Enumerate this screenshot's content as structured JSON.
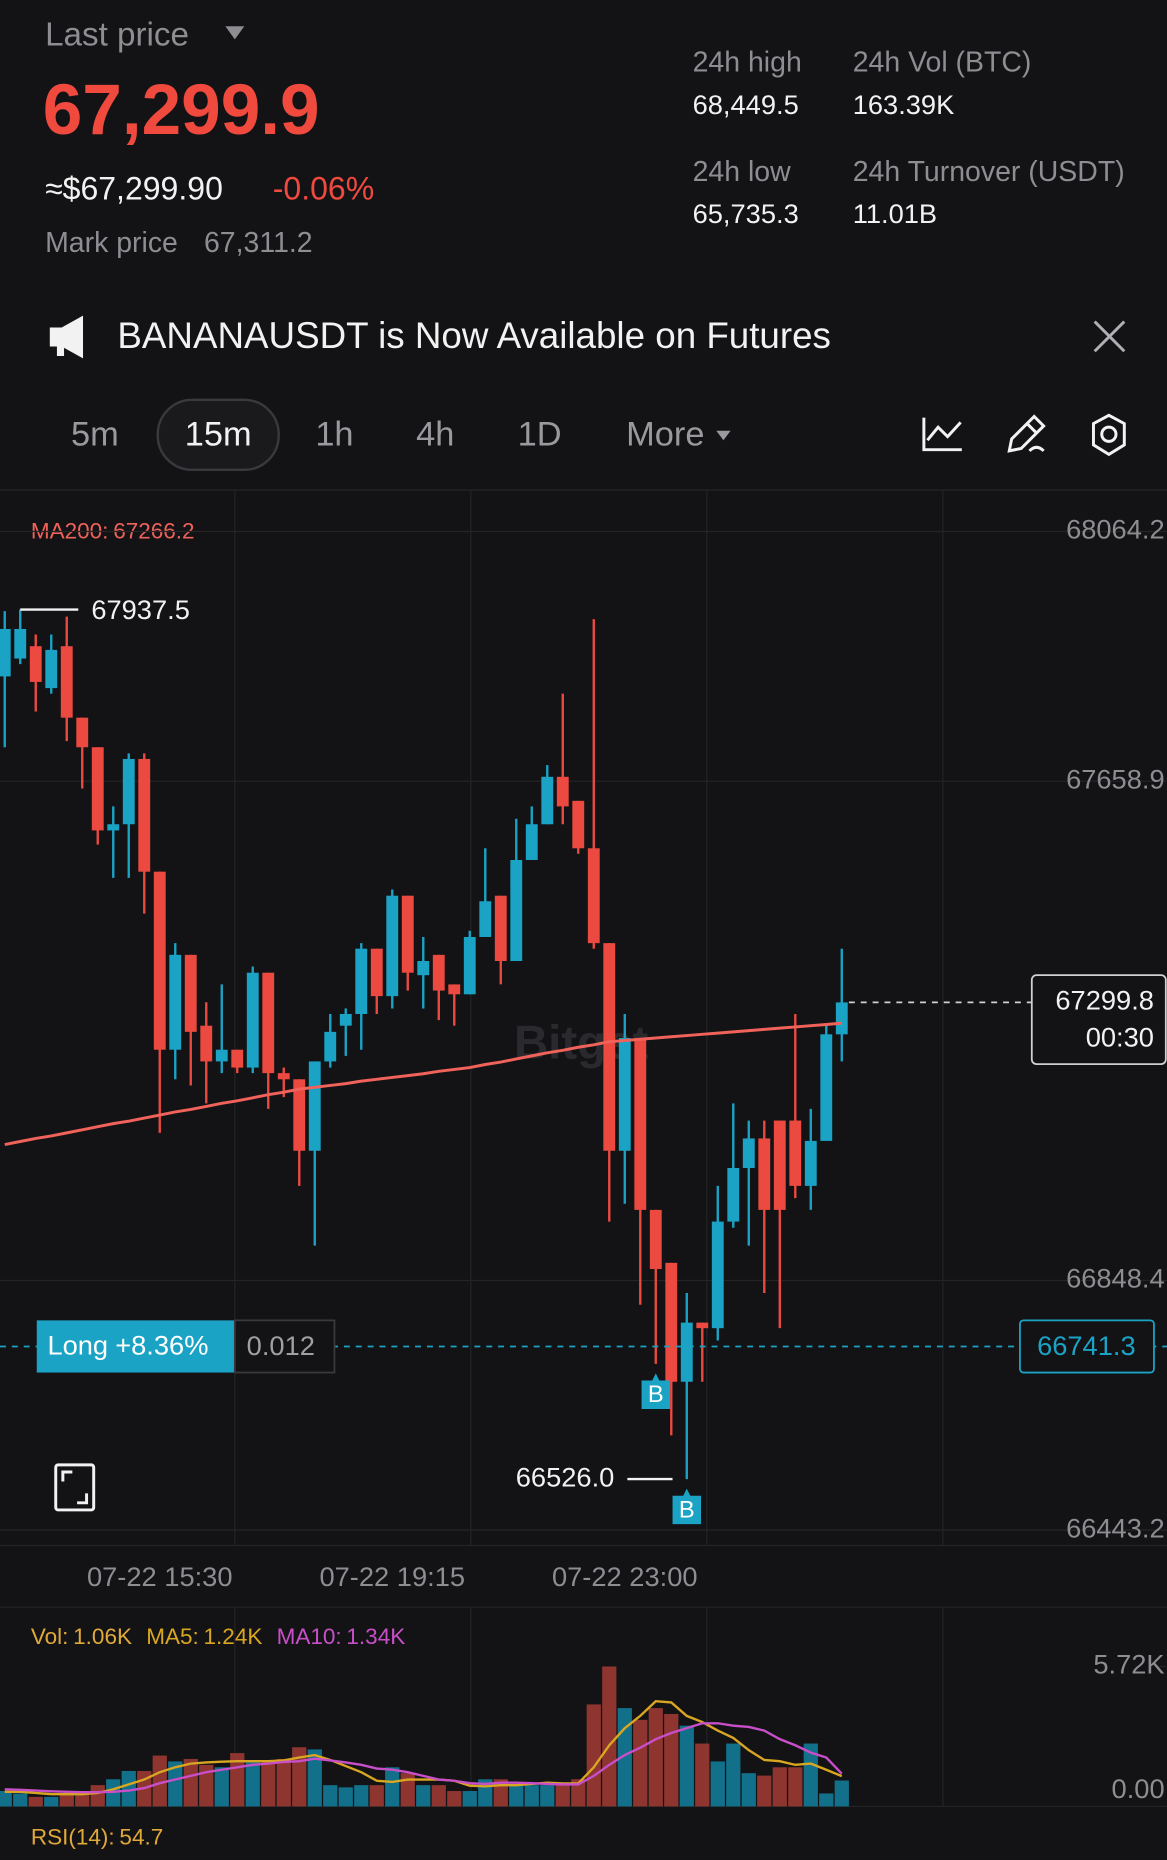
{
  "header": {
    "last_price_label": "Last price",
    "last_price": "67,299.9",
    "usd_price": "≈$67,299.90",
    "change": "-0.06%",
    "mark_price_label": "Mark price",
    "mark_price": "67,311.2",
    "stats": [
      {
        "label": "24h high",
        "value": "68,449.5"
      },
      {
        "label": "24h Vol (BTC)",
        "value": "163.39K"
      },
      {
        "label": "24h low",
        "value": "65,735.3"
      },
      {
        "label": "24h Turnover (USDT)",
        "value": "11.01B"
      }
    ]
  },
  "banner": {
    "text": "BANANAUSDT is Now Available on Futures"
  },
  "timeframes": [
    "5m",
    "15m",
    "1h",
    "4h",
    "1D",
    "More"
  ],
  "active_timeframe": "15m",
  "watermark": "Bitget",
  "chart_data": [
    {
      "type": "candlestick",
      "categories": [
        null,
        null,
        null,
        null,
        null,
        null,
        null,
        null,
        null,
        null,
        "07-22 15:30",
        null,
        null,
        null,
        null,
        null,
        null,
        null,
        null,
        null,
        null,
        null,
        null,
        null,
        null,
        "07-22 19:15",
        null,
        null,
        null,
        null,
        null,
        null,
        null,
        null,
        null,
        null,
        null,
        null,
        null,
        null,
        "07-22 23:00",
        null,
        null,
        null,
        null,
        null,
        null,
        null,
        null,
        null,
        null,
        null,
        null,
        null,
        null
      ],
      "open": [
        67829,
        67858,
        67878,
        67810,
        67878,
        67762,
        67714,
        67579,
        67589,
        67695,
        67512,
        67223,
        67377,
        67262,
        67204,
        67223,
        67194,
        67348,
        67185,
        67175,
        67059,
        67204,
        67262,
        67281,
        67387,
        67310,
        67473,
        67344,
        67377,
        67329,
        67313,
        67406,
        67473,
        67367,
        67531,
        67589,
        67666,
        67627,
        67550,
        67396,
        67059,
        67242,
        66963,
        66877,
        66684,
        66780,
        66771,
        66944,
        67031,
        67079,
        67108,
        67108,
        67002,
        67075,
        67248
      ],
      "high": [
        67935,
        67937.5,
        67897,
        67897,
        67926,
        67762,
        67714,
        67618,
        67704,
        67704,
        67512,
        67396,
        67377,
        67300,
        67329,
        67223,
        67358,
        67348,
        67194,
        67175,
        67204,
        67281,
        67290,
        67396,
        67387,
        67483,
        67473,
        67406,
        67377,
        67329,
        67416,
        67550,
        67473,
        67598,
        67618,
        67685,
        67801,
        67627,
        67922,
        67396,
        67281,
        67242,
        66963,
        66877,
        66828,
        66780,
        67002,
        67136,
        67108,
        67108,
        67108,
        67281,
        67127,
        67262,
        67387
      ],
      "low": [
        67714,
        67849,
        67772,
        67801,
        67724,
        67647,
        67556,
        67502,
        67502,
        67444,
        67088,
        67175,
        67165,
        67136,
        67185,
        67185,
        67185,
        67127,
        67146,
        67002,
        66905,
        67194,
        67213,
        67223,
        67281,
        67290,
        67319,
        67290,
        67271,
        67262,
        67313,
        67406,
        67329,
        67367,
        67531,
        67589,
        67589,
        67541,
        67387,
        66944,
        66973,
        66809,
        66713,
        66597,
        66526,
        66684,
        66751,
        66934,
        66905,
        66828,
        66771,
        66982,
        66963,
        67075,
        67204
      ],
      "close": [
        67906,
        67906,
        67820,
        67872,
        67762,
        67714,
        67579,
        67589,
        67695,
        67512,
        67223,
        67377,
        67252,
        67204,
        67223,
        67194,
        67348,
        67185,
        67175,
        67059,
        67204,
        67252,
        67281,
        67387,
        67310,
        67473,
        67348,
        67367,
        67319,
        67313,
        67406,
        67464,
        67367,
        67531,
        67589,
        67666,
        67618,
        67550,
        67396,
        67059,
        67242,
        66963,
        66867,
        66684,
        66780,
        66771,
        66944,
        67031,
        67079,
        66963,
        66963,
        67002,
        67075,
        67248,
        67299.8
      ],
      "up_color": "#1ba3c6",
      "down_color": "#ec4a40",
      "ma": {
        "name": "MA200:",
        "color": "#f0625a",
        "values": [
          67069,
          67074,
          67079,
          67083,
          67088,
          67093,
          67098,
          67103,
          67107,
          67112,
          67117,
          67122,
          67126,
          67131,
          67136,
          67140,
          67145,
          67150,
          67154,
          67159,
          67162,
          67165,
          67168,
          67172,
          67175,
          67178,
          67181,
          67184,
          67188,
          67191,
          67194,
          67199,
          67203,
          67208,
          67213,
          67218,
          67222,
          67227,
          67231,
          67236,
          67238,
          67240,
          67242,
          67244,
          67246,
          67248,
          67250,
          67252,
          67254,
          67256,
          67258,
          67260,
          67262,
          67264,
          67266.2
        ]
      },
      "ylim": [
        66443.2,
        68064.2
      ],
      "yticks": [
        68064.2,
        67658.9,
        66848.4,
        66443.2
      ],
      "grid": true,
      "markers": [
        null,
        null,
        null,
        null,
        null,
        null,
        null,
        null,
        null,
        null,
        null,
        null,
        null,
        null,
        null,
        null,
        null,
        null,
        null,
        null,
        null,
        null,
        null,
        null,
        null,
        null,
        null,
        null,
        null,
        null,
        null,
        null,
        null,
        null,
        null,
        null,
        null,
        null,
        null,
        null,
        null,
        null,
        "B",
        null,
        "B",
        null,
        null,
        null,
        null,
        null,
        null,
        null,
        null,
        null,
        null
      ],
      "annotations": {
        "high": 67937.5,
        "low": {
          "value": 66526,
          "label": "66526.0"
        },
        "countdown": "00:30"
      },
      "position": {
        "side": "Long",
        "pnl": "+8.36%",
        "size": 0.012,
        "entry": 66741.3,
        "color": "#1ba3c6"
      }
    },
    {
      "type": "bar",
      "series": [
        {
          "name": "Vol:",
          "color": "#e0a93a",
          "values": [
            630,
            530,
            390,
            390,
            530,
            630,
            870,
            1110,
            1450,
            1450,
            2080,
            1840,
            1940,
            1700,
            1600,
            2180,
            1840,
            1840,
            1940,
            2420,
            2330,
            870,
            780,
            870,
            870,
            1600,
            1360,
            870,
            870,
            630,
            630,
            1110,
            1110,
            870,
            870,
            870,
            970,
            1110,
            4170,
            5720,
            4020,
            3540,
            4020,
            3780,
            3300,
            2570,
            1840,
            2570,
            1360,
            1260,
            1600,
            1600,
            2570,
            530,
            1060
          ],
          "value_labels": [
            null,
            null,
            null,
            null,
            null,
            null,
            null,
            null,
            null,
            null,
            null,
            null,
            null,
            null,
            null,
            null,
            null,
            null,
            null,
            null,
            null,
            null,
            null,
            null,
            null,
            null,
            null,
            null,
            null,
            null,
            null,
            null,
            null,
            null,
            null,
            null,
            null,
            null,
            null,
            null,
            null,
            null,
            null,
            null,
            null,
            null,
            null,
            null,
            null,
            null,
            null,
            null,
            null,
            null,
            "1.06K"
          ]
        },
        {
          "name": "MA5:",
          "color": "#d9a621",
          "values": [
            600,
            600,
            550,
            500,
            500,
            500,
            550,
            700,
            900,
            1100,
            1400,
            1600,
            1750,
            1800,
            1830,
            1850,
            1850,
            1850,
            1880,
            2000,
            2100,
            1900,
            1650,
            1400,
            1050,
            1000,
            1100,
            1100,
            1100,
            1050,
            850,
            820,
            870,
            870,
            920,
            970,
            940,
            940,
            1600,
            2500,
            3200,
            3700,
            4300,
            4250,
            3700,
            3450,
            3100,
            2800,
            2300,
            1900,
            1850,
            1700,
            1750,
            1500,
            1240
          ],
          "value_labels": [
            null,
            null,
            null,
            null,
            null,
            null,
            null,
            null,
            null,
            null,
            null,
            null,
            null,
            null,
            null,
            null,
            null,
            null,
            null,
            null,
            null,
            null,
            null,
            null,
            null,
            null,
            null,
            null,
            null,
            null,
            null,
            null,
            null,
            null,
            null,
            null,
            null,
            null,
            null,
            null,
            null,
            null,
            null,
            null,
            null,
            null,
            null,
            null,
            null,
            null,
            null,
            null,
            null,
            null,
            "1.24K"
          ]
        },
        {
          "name": "MA10:",
          "color": "#c84fc9",
          "values": [
            700,
            680,
            650,
            620,
            600,
            580,
            580,
            600,
            650,
            750,
            950,
            1100,
            1250,
            1400,
            1500,
            1600,
            1700,
            1750,
            1820,
            1850,
            1950,
            1880,
            1800,
            1700,
            1550,
            1500,
            1400,
            1250,
            1100,
            1050,
            950,
            920,
            970,
            970,
            950,
            920,
            900,
            900,
            1250,
            1700,
            2100,
            2400,
            2750,
            3000,
            3200,
            3400,
            3400,
            3300,
            3250,
            3100,
            2750,
            2500,
            2200,
            2000,
            1340
          ],
          "value_labels": [
            null,
            null,
            null,
            null,
            null,
            null,
            null,
            null,
            null,
            null,
            null,
            null,
            null,
            null,
            null,
            null,
            null,
            null,
            null,
            null,
            null,
            null,
            null,
            null,
            null,
            null,
            null,
            null,
            null,
            null,
            null,
            null,
            null,
            null,
            null,
            null,
            null,
            null,
            null,
            null,
            null,
            null,
            null,
            null,
            null,
            null,
            null,
            null,
            null,
            null,
            null,
            null,
            null,
            null,
            "1.34K"
          ]
        }
      ],
      "up_color": "#12708a",
      "down_color": "#8e3530",
      "ylim": [
        0,
        5720
      ],
      "yticks": [
        {
          "value": 5720,
          "label": "5.72K"
        },
        {
          "value": 0,
          "label": "0.00"
        }
      ]
    }
  ],
  "rsi": {
    "name": "RSI(14):",
    "value": 54.7
  }
}
